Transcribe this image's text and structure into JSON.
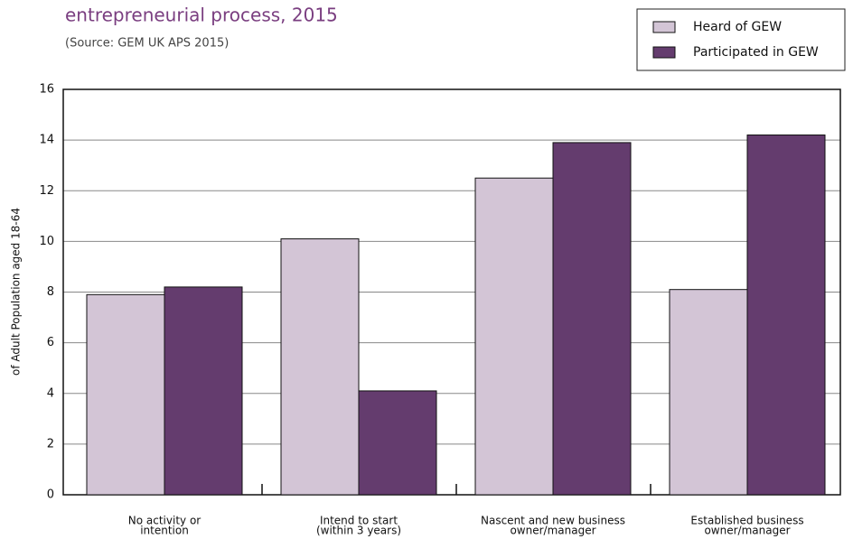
{
  "chart_data": {
    "type": "bar",
    "title": "entrepreneurial process, 2015",
    "subtitle": "(Source: GEM UK APS 2015)",
    "y_label": "of Adult Population aged 18-64",
    "categories": [
      [
        "No activity or",
        "intention"
      ],
      [
        "Intend to start",
        "(within 3 years)"
      ],
      [
        "Nascent and new business",
        "owner/manager"
      ],
      [
        "Established business",
        "owner/manager"
      ]
    ],
    "series": [
      {
        "name": "Heard of GEW",
        "color": "#d3c5d6",
        "values": [
          7.9,
          10.1,
          12.5,
          8.1
        ]
      },
      {
        "name": "Participated in GEW",
        "color": "#643c6e",
        "values": [
          8.2,
          4.1,
          13.9,
          14.2
        ]
      }
    ],
    "ylim": [
      0,
      16
    ],
    "yticks": [
      0,
      2,
      4,
      6,
      8,
      10,
      12,
      14,
      16
    ],
    "grid": true,
    "legend": "top-right"
  }
}
